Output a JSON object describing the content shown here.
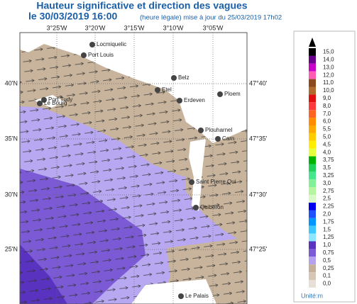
{
  "header": {
    "title": "Hauteur significative et direction des vagues",
    "date": "le 30/03/2019 16:00",
    "update": "(heure légale) mise à jour du 25/03/2019 17h02"
  },
  "map": {
    "lon_labels": [
      "3°25'W",
      "3°20'W",
      "3°15'W",
      "3°10'W",
      "3°05'W"
    ],
    "lat_labels_left": [
      "40'N",
      "35'N",
      "30'N",
      "25'N"
    ],
    "lat_labels_right": [
      "47°40'",
      "47°35'",
      "47°30'",
      "47°25'"
    ],
    "places": [
      "Locmiquelic",
      "Port Louis",
      "Belz",
      "Etel",
      "Ploem",
      "Port Tudy",
      "Le Bourg",
      "Erdeven",
      "Plouharnel",
      "Carn",
      "Saint Pierre Qui",
      "Quiberon",
      "Le Palais"
    ]
  },
  "legend": {
    "items": [
      {
        "label": "15,0",
        "color": "#000000"
      },
      {
        "label": "14,0",
        "color": "#6a008c"
      },
      {
        "label": "13,0",
        "color": "#c800c8"
      },
      {
        "label": "12,0",
        "color": "#ff5ab4"
      },
      {
        "label": "11,0",
        "color": "#8b4a1e"
      },
      {
        "label": "10,0",
        "color": "#b06a2c"
      },
      {
        "label": "9,0",
        "color": "#e01010"
      },
      {
        "label": "8,0",
        "color": "#ff3a3a"
      },
      {
        "label": "7,0",
        "color": "#ff6420"
      },
      {
        "label": "6,0",
        "color": "#ff8c00"
      },
      {
        "label": "5,5",
        "color": "#ffaa00"
      },
      {
        "label": "5,0",
        "color": "#ffcc00"
      },
      {
        "label": "4,5",
        "color": "#ffee00"
      },
      {
        "label": "4,0",
        "color": "#e6ff3c"
      },
      {
        "label": "3,75",
        "color": "#00b400"
      },
      {
        "label": "3,5",
        "color": "#1ed25a"
      },
      {
        "label": "3,25",
        "color": "#46e68c"
      },
      {
        "label": "3,0",
        "color": "#82f096"
      },
      {
        "label": "2,75",
        "color": "#b4f5a0"
      },
      {
        "label": "2,5",
        "color": "#d8fac8"
      },
      {
        "label": "2,25",
        "color": "#0000f0"
      },
      {
        "label": "2,0",
        "color": "#1e50ff"
      },
      {
        "label": "1,75",
        "color": "#0096ff"
      },
      {
        "label": "1,5",
        "color": "#3cc8ff"
      },
      {
        "label": "1,25",
        "color": "#8ce6ff"
      },
      {
        "label": "1,0",
        "color": "#5a32c0"
      },
      {
        "label": "0,75",
        "color": "#7c5ad6"
      },
      {
        "label": "0,5",
        "color": "#b4a2f0"
      },
      {
        "label": "0,25",
        "color": "#c4b09a"
      },
      {
        "label": "0,1",
        "color": "#d6c6b4"
      },
      {
        "label": "0,0",
        "color": "#e8e0d6"
      }
    ],
    "unit": "Unité:m"
  }
}
